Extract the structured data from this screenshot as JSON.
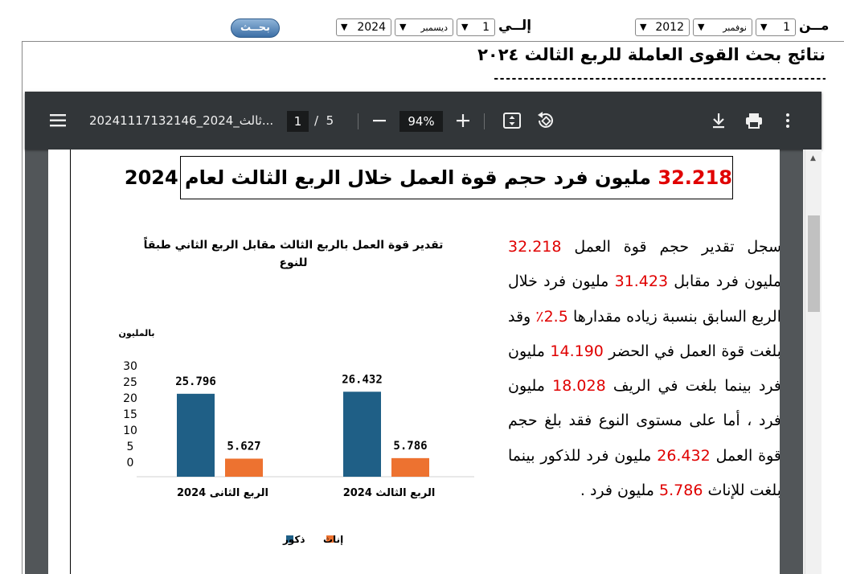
{
  "filter": {
    "from_label": "مــن",
    "from_day": "1",
    "from_month": "نوفمبر",
    "from_year": "2012",
    "to_label": "إلــي",
    "to_day": "1",
    "to_month": "ديسمبر",
    "to_year": "2024",
    "search_label": "بحــث"
  },
  "page": {
    "heading": "نتائج بحث القوى العاملة للربع الثالث ٢٠٢٤",
    "divider": "----------------------------------------------------------------"
  },
  "viewer": {
    "file_title": "20241117132146_2024_ثالث...",
    "page_current": "1",
    "page_sep": "/",
    "page_total": "5",
    "zoom": "94%",
    "icons": [
      "menu-icon",
      "zoom-out-icon",
      "zoom-in-icon",
      "fit-page-icon",
      "rotate-icon",
      "download-icon",
      "print-icon",
      "more-options-icon"
    ]
  },
  "document": {
    "headline_number": "32.218",
    "headline_text": "مليون فرد حجم قوة العمل خلال الربع الثالث لعام 2024",
    "paragraph": [
      {
        "t": "سجل تقدير حجم قوة العمل "
      },
      {
        "t": "32.218",
        "red": true
      },
      {
        "t": " مليون فرد مقابل "
      },
      {
        "t": "31.423",
        "red": true
      },
      {
        "t": " مليون فرد خلال الربع السابق بنسبة زياده مقدارها "
      },
      {
        "t": "2.5٪",
        "red": true
      },
      {
        "t": " وقد بلغت قوة العمل في الحضر "
      },
      {
        "t": "14.190",
        "red": true
      },
      {
        "t": " مليون فرد بينما بلغت في الريف "
      },
      {
        "t": "18.028",
        "red": true
      },
      {
        "t": " مليون فرد ،  أما على مستوى النوع فقد بلغ حجم قوة العمل "
      },
      {
        "t": "26.432",
        "red": true
      },
      {
        "t": " مليون فرد للذكور بينما بلغت للإناث "
      },
      {
        "t": "5.786",
        "red": true
      },
      {
        "t": " مليون فرد ."
      }
    ],
    "chart_title": "تقدير قوة العمل بالربع الثالث مقابل الربع الثاني طبقاً للنوع"
  },
  "chart_data": {
    "type": "bar",
    "ylabel": "بالمليون",
    "ylim": [
      0,
      30
    ],
    "yticks": [
      "30",
      "25",
      "20",
      "15",
      "10",
      "5",
      "0"
    ],
    "categories": [
      "الربع الثانى 2024",
      "الربع الثالث 2024"
    ],
    "series": [
      {
        "name": "ذكور",
        "color": "#1f5f86",
        "values": [
          25.796,
          26.432
        ],
        "labels": [
          "25.796",
          "26.432"
        ]
      },
      {
        "name": "إناث",
        "color": "#ed7230",
        "values": [
          5.627,
          5.786
        ],
        "labels": [
          "5.627",
          "5.786"
        ]
      }
    ],
    "legend_position": "bottom"
  }
}
